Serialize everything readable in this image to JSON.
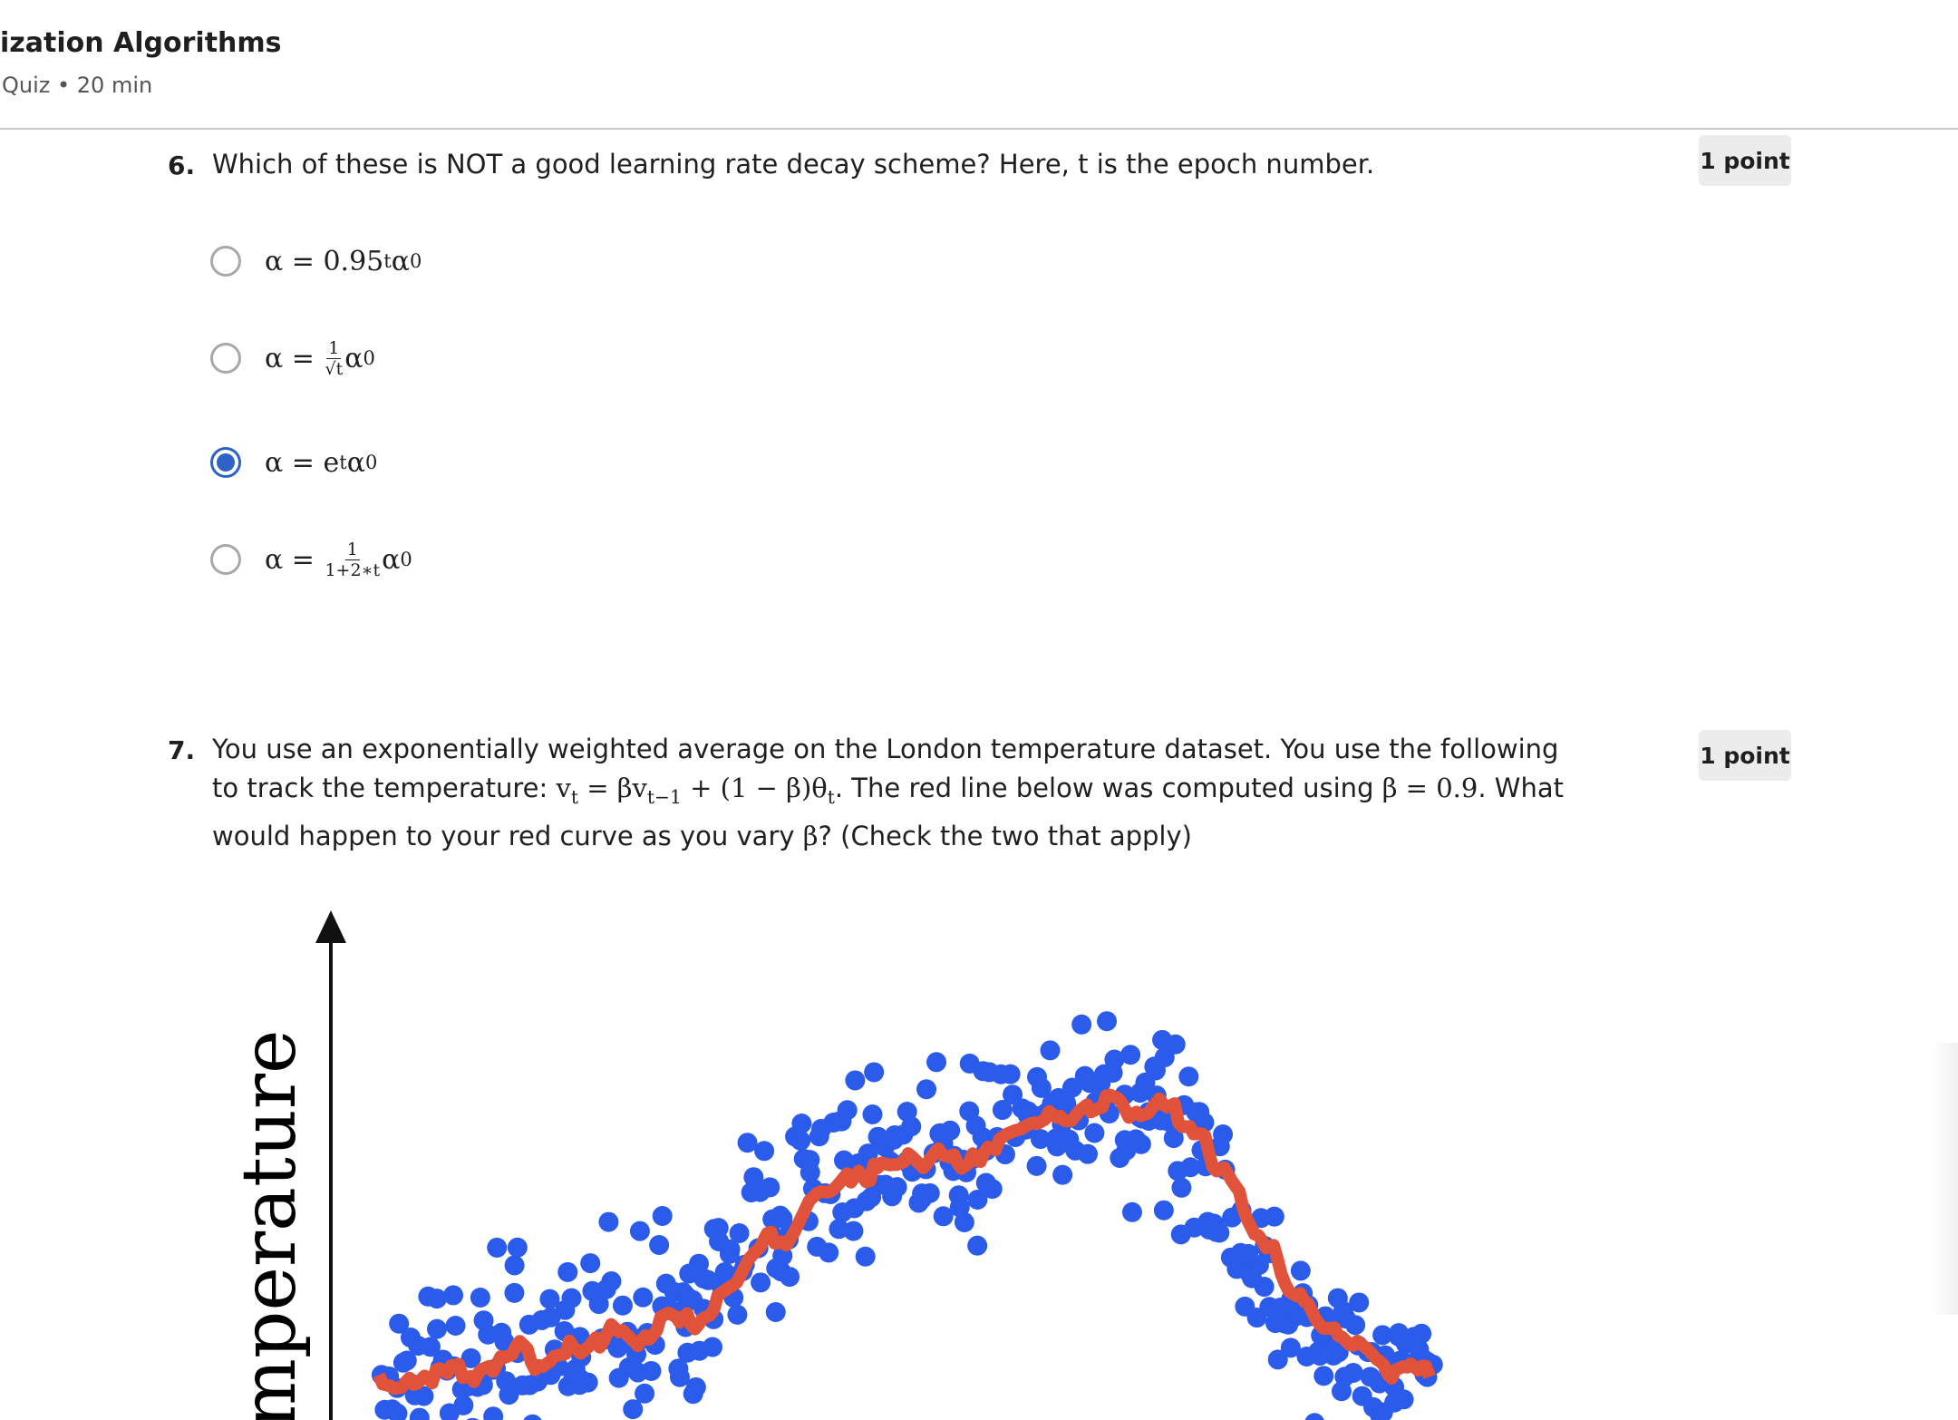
{
  "header": {
    "title": "ization Algorithms",
    "subtitle": "Quiz • 20 min"
  },
  "questions": [
    {
      "number": "6.",
      "points": "1 point",
      "text": [
        {
          "text": "Which of these is NOT a good learning rate decay scheme? Here, t is the epoch number."
        }
      ],
      "selected": 2,
      "options": [
        {
          "parts": [
            {
              "math": "α = 0.95"
            },
            {
              "sup": "t"
            },
            {
              "math": "α"
            },
            {
              "sub": "0"
            }
          ]
        },
        {
          "parts": [
            {
              "math": "α = "
            },
            {
              "num": "1",
              "den": "√t"
            },
            {
              "math": "α"
            },
            {
              "sub": "0"
            }
          ]
        },
        {
          "parts": [
            {
              "math": "α = e"
            },
            {
              "sup": "t"
            },
            {
              "math": "α"
            },
            {
              "sub": "0"
            }
          ]
        },
        {
          "parts": [
            {
              "math": "α = "
            },
            {
              "num": "1",
              "den": "1+2∗t"
            },
            {
              "math": "α"
            },
            {
              "sub": "0"
            }
          ]
        }
      ]
    },
    {
      "number": "7.",
      "points": "1 point",
      "text": [
        {
          "text": "You use an exponentially weighted average on the London temperature dataset. You use the following to track the temperature: "
        },
        {
          "math": "v"
        },
        {
          "sub": "t"
        },
        {
          "math": " = βv"
        },
        {
          "sub": "t−1"
        },
        {
          "math": " + (1 − β)θ"
        },
        {
          "sub": "t"
        },
        {
          "text": ". The red line below was computed using "
        },
        {
          "math": "β = 0.9"
        },
        {
          "text": ". What would happen to your red curve as you vary "
        },
        {
          "math": "β"
        },
        {
          "text": "? (Check the two that apply)"
        }
      ],
      "figure": {
        "y_label": "emperature"
      }
    }
  ]
}
